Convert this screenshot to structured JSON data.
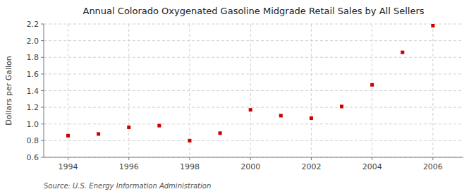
{
  "chart_data": {
    "type": "scatter",
    "title": "Annual Colorado Oxygenated Gasoline Midgrade Retail Sales by All Sellers",
    "y_label": "Dollars per Gallon",
    "annotations": [
      "Source: U.S. Energy Information Administration"
    ],
    "x": [
      1994,
      1995,
      1996,
      1997,
      1998,
      1999,
      2000,
      2001,
      2002,
      2003,
      2004,
      2005,
      2006
    ],
    "values": [
      0.86,
      0.88,
      0.96,
      0.98,
      0.8,
      0.89,
      1.17,
      1.1,
      1.07,
      1.21,
      1.47,
      1.86,
      2.18
    ],
    "color": "#cc0000",
    "marker": "square",
    "xlim": [
      1993.2,
      2007.0
    ],
    "ylim": [
      0.6,
      2.2
    ],
    "xticks": [
      1994,
      1996,
      1998,
      2000,
      2002,
      2004,
      2006
    ],
    "yticks": [
      0.6,
      0.8,
      {
        "value": 1.0,
        "label": "1.0"
      },
      1.2,
      1.4,
      1.6,
      1.8,
      {
        "value": 2.0,
        "label": "2.0"
      },
      2.2
    ],
    "grid": true
  }
}
